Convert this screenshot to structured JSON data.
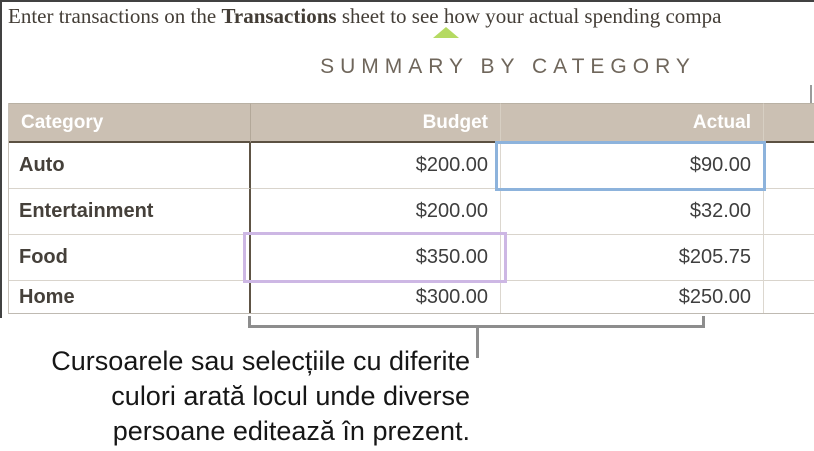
{
  "comment": {
    "prefix": "Enter transactions on the ",
    "bold": "Transactions",
    "suffix": " sheet to see how your actual spending compa"
  },
  "title": "SUMMARY BY CATEGORY",
  "table": {
    "columns": [
      "Category",
      "Budget",
      "Actual"
    ],
    "rows": [
      {
        "category": "Auto",
        "budget": "$200.00",
        "actual": "$90.00"
      },
      {
        "category": "Entertainment",
        "budget": "$200.00",
        "actual": "$32.00"
      },
      {
        "category": "Food",
        "budget": "$350.00",
        "actual": "$205.75"
      },
      {
        "category": "Home",
        "budget": "$300.00",
        "actual": "$250.00"
      }
    ]
  },
  "selections": {
    "blue": {
      "row": "Auto",
      "column": "Actual",
      "color": "#8db3dc"
    },
    "purple": {
      "row": "Food",
      "column": "Budget",
      "color": "#cdb7e4"
    }
  },
  "marker": {
    "color": "#b5da62"
  },
  "colors": {
    "header_background": "#cbc0b3",
    "header_text": "#ffffff",
    "title_text": "#6f665b",
    "bracket_gray": "#8d8d8d"
  },
  "caption": {
    "lines": [
      "Cursoarele sau selecțiile cu diferite",
      "culori arată locul unde diverse",
      "persoane editează în prezent."
    ]
  }
}
